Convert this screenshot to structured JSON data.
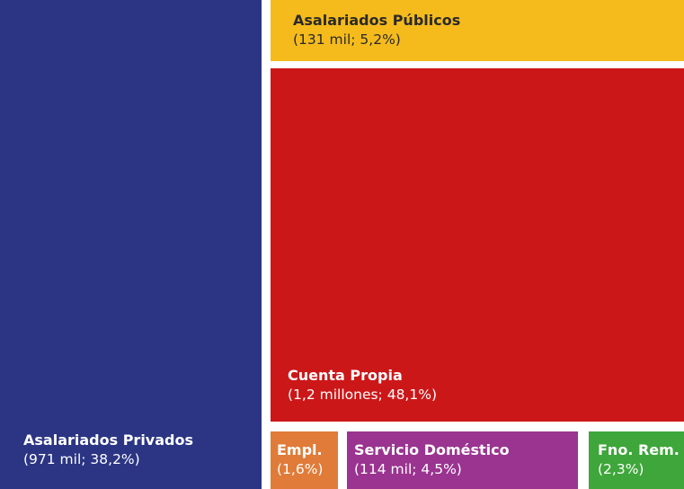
{
  "chart_data": {
    "type": "treemap",
    "items": [
      {
        "id": "privados",
        "label": "Asalariados Privados",
        "value_text": "(971 mil; 38,2%)",
        "percent": 38.2,
        "color": "#2b3584",
        "text_color": "#ffffff"
      },
      {
        "id": "publicos",
        "label": "Asalariados Públicos",
        "value_text": "(131 mil; 5,2%)",
        "percent": 5.2,
        "color": "#f5bb1d",
        "text_color": "#2a2a2a"
      },
      {
        "id": "cuenta-propia",
        "label": "Cuenta Propia",
        "value_text": "(1,2 millones; 48,1%)",
        "percent": 48.1,
        "color": "#cc1719",
        "text_color": "#ffffff"
      },
      {
        "id": "empl",
        "label": "Empl.",
        "value_text": "(1,6%)",
        "percent": 1.6,
        "color": "#e07b39",
        "text_color": "#ffffff"
      },
      {
        "id": "servicio-domestico",
        "label": "Servicio Doméstico",
        "value_text": "(114 mil; 4,5%)",
        "percent": 4.5,
        "color": "#9a3490",
        "text_color": "#ffffff"
      },
      {
        "id": "fno-rem",
        "label": "Fno. Rem.",
        "value_text": "(2,3%)",
        "percent": 2.3,
        "color": "#3ea63a",
        "text_color": "#ffffff"
      }
    ]
  }
}
